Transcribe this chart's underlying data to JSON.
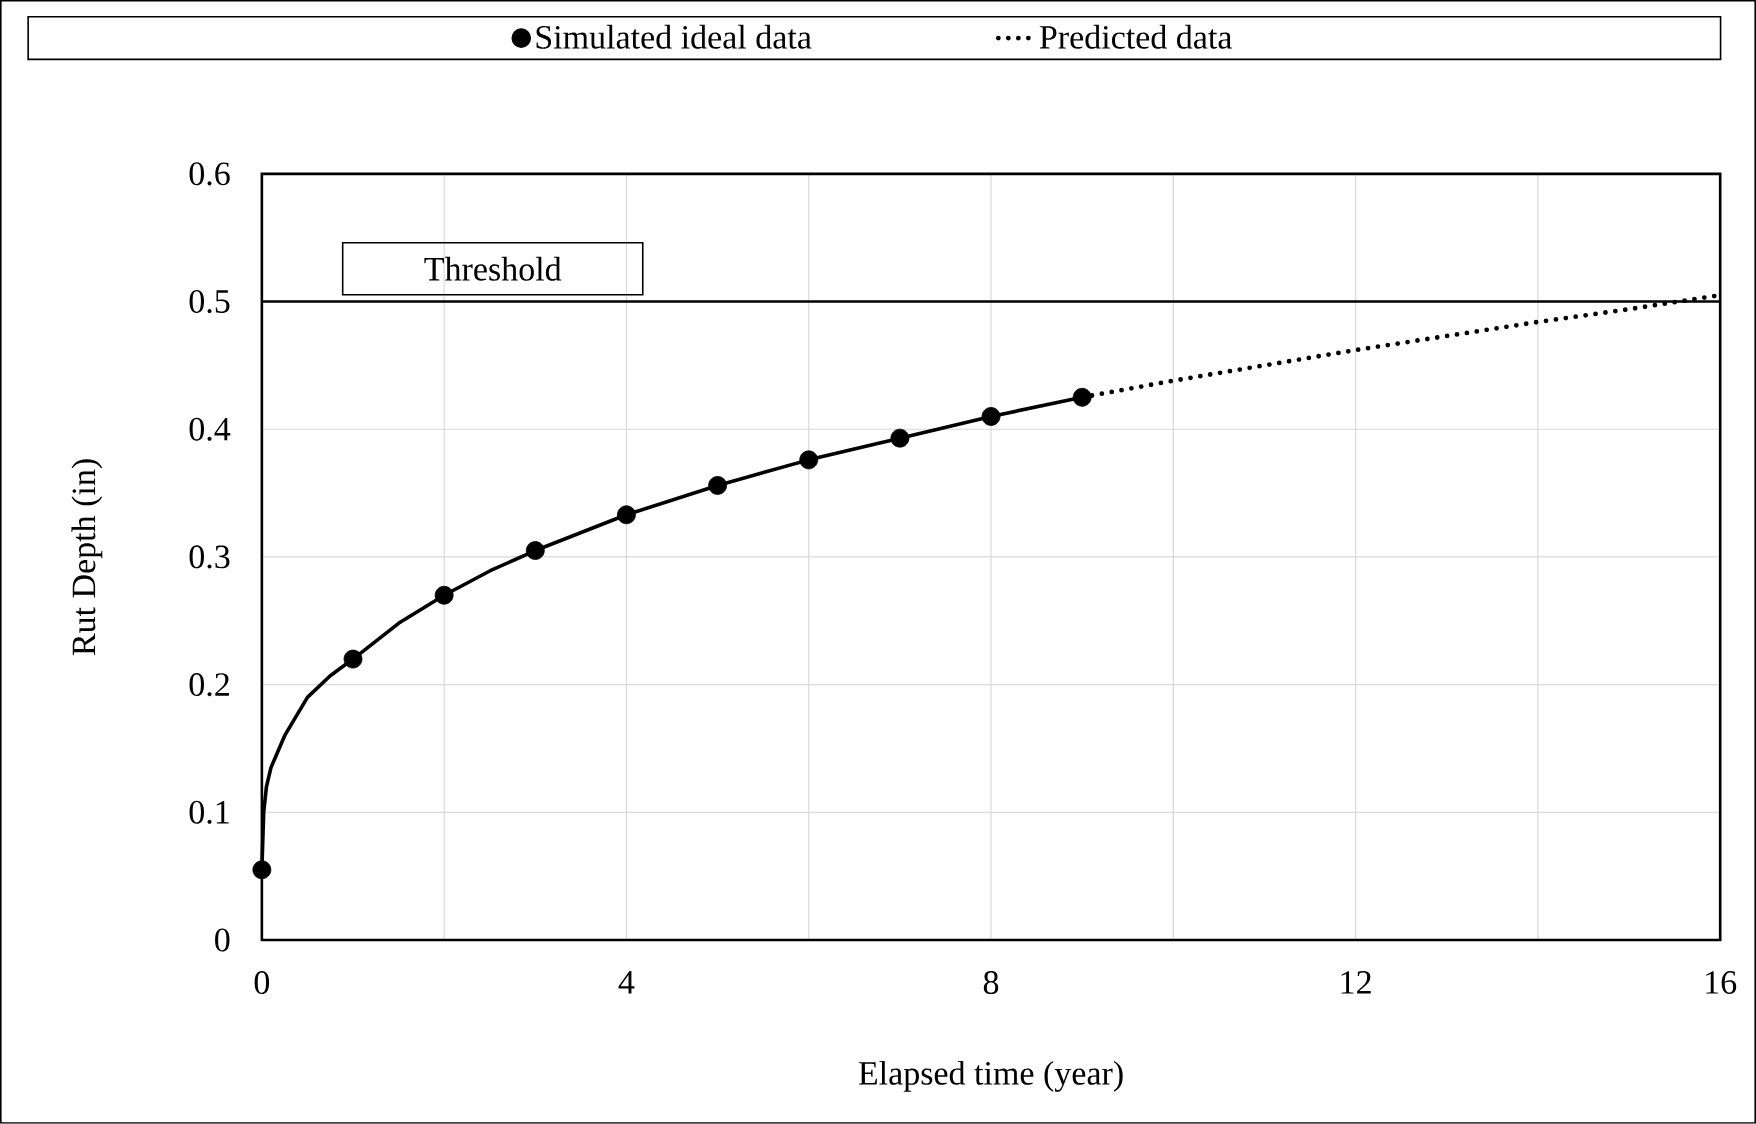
{
  "chart_data": {
    "type": "scatter",
    "xlabel": "Elapsed time (year)",
    "ylabel": "Rut Depth (in)",
    "xlim": [
      0,
      16
    ],
    "ylim": [
      0,
      0.6
    ],
    "xticks": [
      0,
      {
        "value": 2,
        "label": null
      },
      4,
      {
        "value": 6,
        "label": null
      },
      8,
      {
        "value": 10,
        "label": null
      },
      12,
      {
        "value": 14,
        "label": null
      },
      16
    ],
    "yticks": [
      0,
      0.1,
      0.2,
      0.3,
      0.4,
      0.5,
      0.6
    ],
    "grid": true,
    "legend": "top",
    "series": [
      {
        "type": "line",
        "marker": "none",
        "color": "#000000",
        "line_style": "solid",
        "x": [
          0,
          0.02,
          0.05,
          0.1,
          0.25,
          0.5,
          0.75,
          1,
          1.5,
          2,
          2.5,
          3,
          4,
          5,
          6,
          7,
          8,
          9
        ],
        "values": [
          0.055,
          0.1,
          0.12,
          0.135,
          0.16,
          0.19,
          0.207,
          0.22,
          0.248,
          0.27,
          0.289,
          0.305,
          0.333,
          0.356,
          0.376,
          0.393,
          0.41,
          0.425
        ]
      },
      {
        "name": "Simulated ideal data",
        "marker": "circle",
        "color": "#000000",
        "x": [
          0,
          1,
          2,
          3,
          4,
          5,
          6,
          7,
          8,
          9
        ],
        "values": [
          0.055,
          0.22,
          0.27,
          0.305,
          0.333,
          0.356,
          0.376,
          0.393,
          0.41,
          0.425
        ]
      },
      {
        "type": "line",
        "marker": "none",
        "name": "Predicted data",
        "color": "#000000",
        "line_style": "dotted",
        "x": [
          9,
          10,
          11,
          12,
          13,
          14,
          15,
          16
        ],
        "values": [
          0.425,
          0.438,
          0.45,
          0.462,
          0.473,
          0.484,
          0.494,
          0.505
        ]
      }
    ],
    "ref_lines": [
      {
        "axis": "y",
        "value": 0.5,
        "label": "Threshold",
        "color": "#000000",
        "line_style": "solid"
      }
    ]
  }
}
